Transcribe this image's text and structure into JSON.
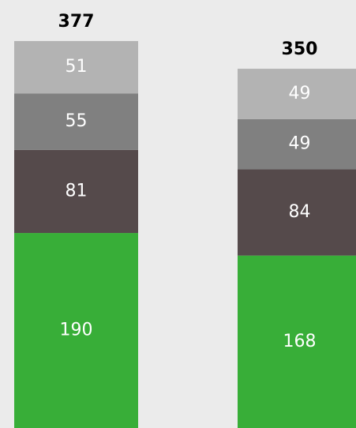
{
  "chart_data": {
    "type": "stacked_bar",
    "categories": [
      null,
      null
    ],
    "series": [
      {
        "color": "#38ae38",
        "values": [
          190,
          168
        ]
      },
      {
        "color": "#554a4b",
        "values": [
          81,
          84
        ]
      },
      {
        "color": "#808080",
        "values": [
          55,
          49
        ]
      },
      {
        "color": "#b3b3b3",
        "values": [
          51,
          49
        ]
      }
    ],
    "totals": [
      377,
      350
    ],
    "ylim": [
      0,
      417
    ]
  }
}
